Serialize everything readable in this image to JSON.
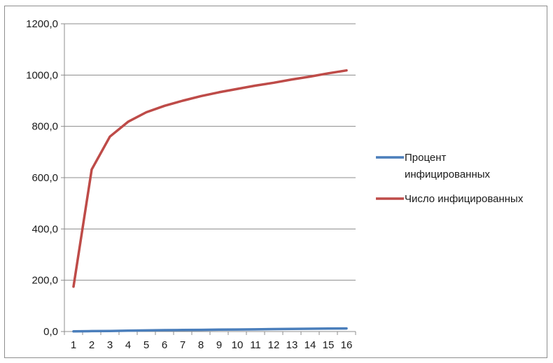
{
  "chart_data": {
    "type": "line",
    "categories": [
      "1",
      "2",
      "3",
      "4",
      "5",
      "6",
      "7",
      "8",
      "9",
      "10",
      "11",
      "12",
      "13",
      "14",
      "15",
      "16"
    ],
    "ylim": [
      0,
      1200
    ],
    "yticks": [
      0,
      200,
      400,
      600,
      800,
      1000,
      1200
    ],
    "ytick_labels": [
      "0,0",
      "200,0",
      "400,0",
      "600,0",
      "800,0",
      "1000,0",
      "1200,0"
    ],
    "grid": true,
    "legend_position": "right",
    "series": [
      {
        "name": "Процент инфицированных",
        "legend_lines": [
          "Процент",
          "инфицированных"
        ],
        "color": "#4a7ebb",
        "values": [
          0.5,
          1.5,
          2,
          3.5,
          4.5,
          5.5,
          6,
          6.5,
          7.5,
          8,
          8.5,
          9.5,
          10,
          11,
          11.5,
          12
        ]
      },
      {
        "name": "Число инфицированных",
        "legend_lines": [
          "Число инфицированных"
        ],
        "color": "#be4b48",
        "values": [
          175,
          632,
          760,
          818,
          855,
          880,
          900,
          918,
          933,
          946,
          959,
          970,
          983,
          994,
          1007,
          1018
        ]
      }
    ]
  }
}
